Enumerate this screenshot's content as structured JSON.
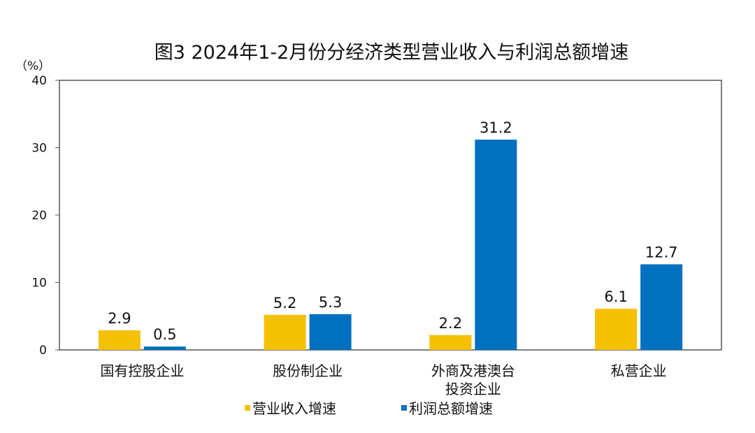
{
  "chart_data": {
    "type": "bar",
    "title": "图3  2024年1-2月份分经济类型营业收入与利润总额增速",
    "ylabel": "（%）",
    "xlabel": "",
    "ylim": [
      0,
      40
    ],
    "yticks": [
      0,
      10,
      20,
      30,
      40
    ],
    "grid": false,
    "legend_position": "bottom",
    "categories": [
      [
        "国有控股企业"
      ],
      [
        "股份制企业"
      ],
      [
        "外商及港澳台",
        "投资企业"
      ],
      [
        "私营企业"
      ]
    ],
    "series": [
      {
        "name": "营业收入增速",
        "color": "#F5C000",
        "values": [
          2.9,
          5.2,
          2.2,
          6.1
        ]
      },
      {
        "name": "利润总额增速",
        "color": "#0070C0",
        "values": [
          0.5,
          5.3,
          31.2,
          12.7
        ]
      }
    ]
  }
}
